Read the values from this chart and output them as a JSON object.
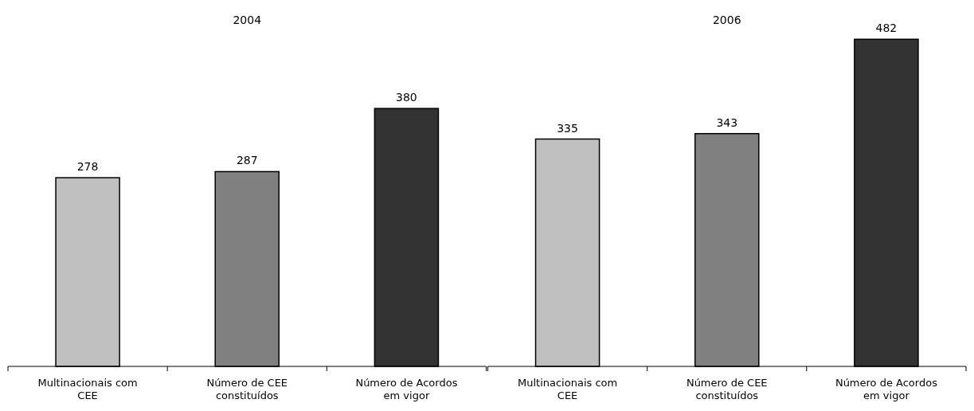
{
  "chart_data": [
    {
      "type": "bar",
      "title": "2004",
      "categories": [
        "Multinacionais com CEE",
        "Número de CEE constituídos",
        "Número de Acordos em vigor"
      ],
      "values": [
        278,
        287,
        380
      ],
      "colors": [
        "#c0c0c0",
        "#808080",
        "#333333"
      ],
      "data_labels": true
    },
    {
      "type": "bar",
      "title": "2006",
      "categories": [
        "Multinacionais com CEE",
        "Número de CEE constituídos",
        "Número de Acordos em vigor"
      ],
      "values": [
        335,
        343,
        482
      ],
      "colors": [
        "#c0c0c0",
        "#808080",
        "#333333"
      ],
      "data_labels": true
    }
  ]
}
